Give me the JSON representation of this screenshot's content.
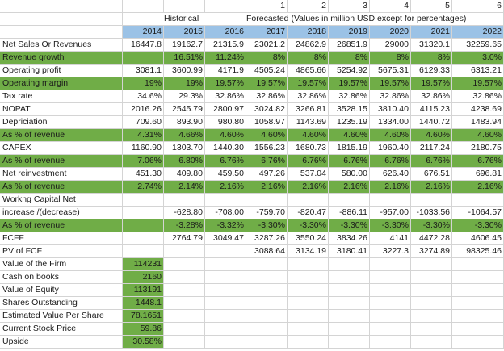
{
  "header": {
    "period_numbers": [
      "1",
      "2",
      "3",
      "4",
      "5",
      "6"
    ],
    "historical_label": "Historical",
    "forecast_label": "Forecasted (Values in million USD except for percentages)",
    "years": [
      "2014",
      "2015",
      "2016",
      "2017",
      "2018",
      "2019",
      "2020",
      "2021",
      "2022"
    ]
  },
  "rows": [
    {
      "label": "Net Sales Or Revenues",
      "green": false,
      "values": [
        "16447.8",
        "19162.7",
        "21315.9",
        "23021.2",
        "24862.9",
        "26851.9",
        "29000",
        "31320.1",
        "32259.65"
      ]
    },
    {
      "label": "Revenue growth",
      "green": true,
      "values": [
        "",
        "16.51%",
        "11.24%",
        "8%",
        "8%",
        "8%",
        "8%",
        "8%",
        "3.0%"
      ]
    },
    {
      "label": "Operating profit",
      "green": false,
      "values": [
        "3081.1",
        "3600.99",
        "4171.9",
        "4505.24",
        "4865.66",
        "5254.92",
        "5675.31",
        "6129.33",
        "6313.21"
      ]
    },
    {
      "label": "Operating margin",
      "green": true,
      "values": [
        "19%",
        "19%",
        "19.57%",
        "19.57%",
        "19.57%",
        "19.57%",
        "19.57%",
        "19.57%",
        "19.57%"
      ]
    },
    {
      "label": "Tax rate",
      "green": false,
      "values": [
        "34.6%",
        "29.3%",
        "32.86%",
        "32.86%",
        "32.86%",
        "32.86%",
        "32.86%",
        "32.86%",
        "32.86%"
      ]
    },
    {
      "label": "NOPAT",
      "green": false,
      "values": [
        "2016.26",
        "2545.79",
        "2800.97",
        "3024.82",
        "3266.81",
        "3528.15",
        "3810.40",
        "4115.23",
        "4238.69"
      ]
    },
    {
      "label": "Depriciation",
      "green": false,
      "values": [
        "709.60",
        "893.90",
        "980.80",
        "1058.97",
        "1143.69",
        "1235.19",
        "1334.00",
        "1440.72",
        "1483.94"
      ]
    },
    {
      "label": "As % of revenue",
      "green": true,
      "values": [
        "4.31%",
        "4.66%",
        "4.60%",
        "4.60%",
        "4.60%",
        "4.60%",
        "4.60%",
        "4.60%",
        "4.60%"
      ]
    },
    {
      "label": "CAPEX",
      "green": false,
      "values": [
        "1160.90",
        "1303.70",
        "1440.30",
        "1556.23",
        "1680.73",
        "1815.19",
        "1960.40",
        "2117.24",
        "2180.75"
      ]
    },
    {
      "label": "As % of revenue",
      "green": true,
      "values": [
        "7.06%",
        "6.80%",
        "6.76%",
        "6.76%",
        "6.76%",
        "6.76%",
        "6.76%",
        "6.76%",
        "6.76%"
      ]
    },
    {
      "label": "Net reinvestment",
      "green": false,
      "values": [
        "451.30",
        "409.80",
        "459.50",
        "497.26",
        "537.04",
        "580.00",
        "626.40",
        "676.51",
        "696.81"
      ]
    },
    {
      "label": "As % of revenue",
      "green": true,
      "values": [
        "2.74%",
        "2.14%",
        "2.16%",
        "2.16%",
        "2.16%",
        "2.16%",
        "2.16%",
        "2.16%",
        "2.16%"
      ]
    },
    {
      "label": "Workng Capital Net",
      "green": false,
      "values": [
        "",
        "",
        "",
        "",
        "",
        "",
        "",
        "",
        ""
      ]
    },
    {
      "label": "increase /(decrease)",
      "green": false,
      "values": [
        "",
        "-628.80",
        "-708.00",
        "-759.70",
        "-820.47",
        "-886.11",
        "-957.00",
        "-1033.56",
        "-1064.57"
      ]
    },
    {
      "label": "As % of revenue",
      "green": true,
      "values": [
        "",
        "-3.28%",
        "-3.32%",
        "-3.30%",
        "-3.30%",
        "-3.30%",
        "-3.30%",
        "-3.30%",
        "-3.30%"
      ]
    },
    {
      "label": "FCFF",
      "green": false,
      "values": [
        "",
        "2764.79",
        "3049.47",
        "3287.26",
        "3550.24",
        "3834.26",
        "4141",
        "4472.28",
        "4606.45"
      ]
    },
    {
      "label": "PV of FCF",
      "green": false,
      "values": [
        "",
        "",
        "",
        "3088.64",
        "3134.19",
        "3180.41",
        "3227.3",
        "3274.89",
        "98325.46"
      ]
    }
  ],
  "summary": [
    {
      "label": "Value of the Firm",
      "value": "114231"
    },
    {
      "label": "Cash on books",
      "value": "2160"
    },
    {
      "label": "Value of Equity",
      "value": "113191"
    },
    {
      "label": "Shares Outstanding",
      "value": "1448.1"
    },
    {
      "label": "Estimated Value Per Share",
      "value": "78.1651"
    },
    {
      "label": "Current Stock Price",
      "value": "59.86"
    },
    {
      "label": "Upside",
      "value": "30.58%"
    }
  ],
  "colors": {
    "green": "#70ad47",
    "blue": "#9bc2e6",
    "grid": "#d4d4d4"
  }
}
